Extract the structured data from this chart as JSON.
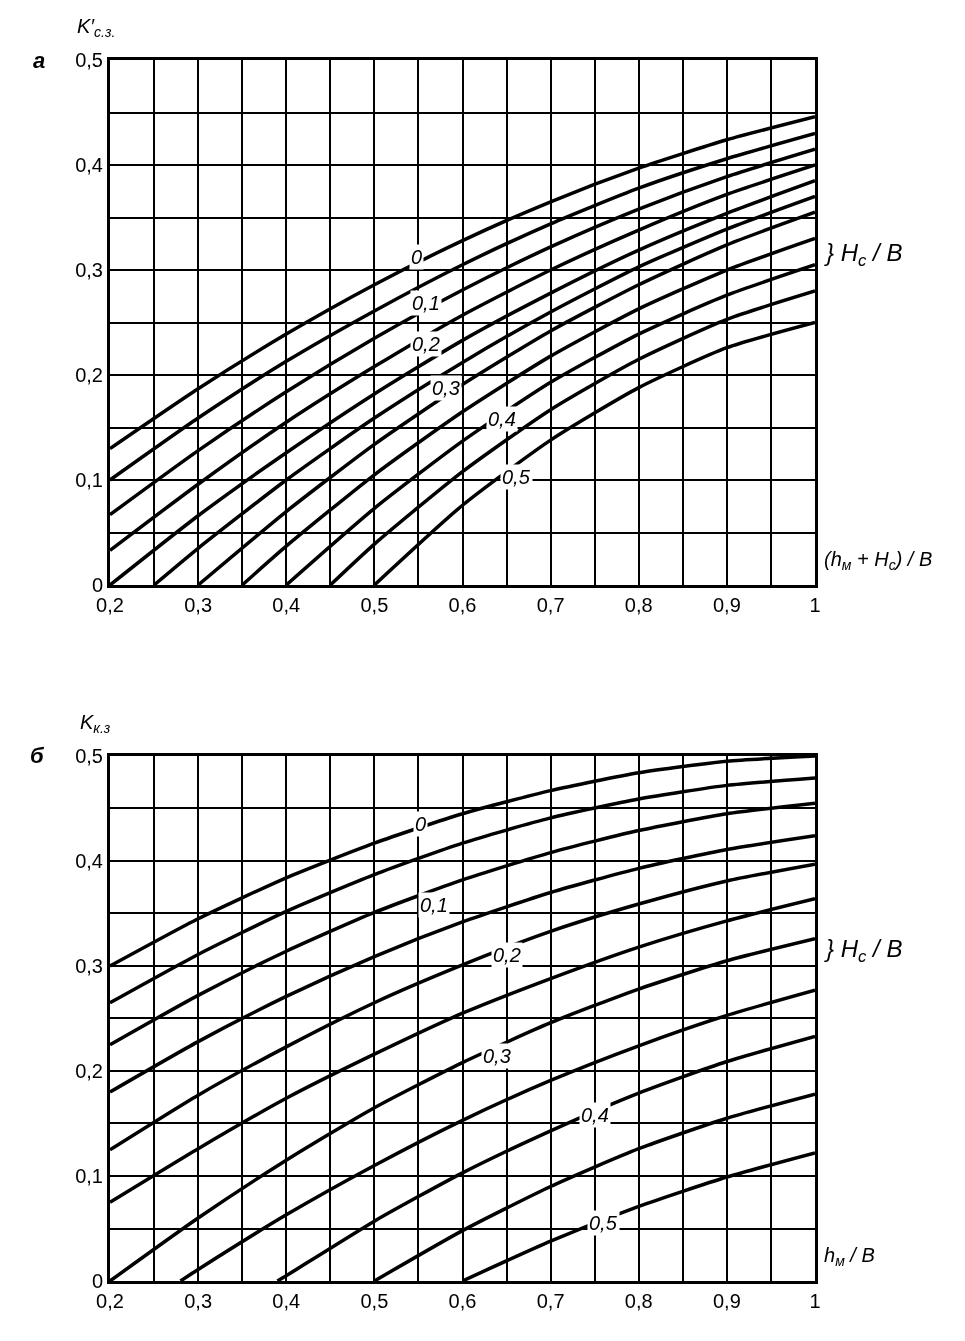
{
  "chart_data": [
    {
      "type": "line",
      "title": "а",
      "ylabel": "K′$_{с.з.}$",
      "xlabel": "(h$_{м}$ + H$_{с}$) / B",
      "color": "#000000",
      "grid": true,
      "marker": "none",
      "line_style": "solid",
      "xlim": [
        0.2,
        1
      ],
      "ylim": [
        0,
        0.5
      ],
      "xticks": [
        {
          "value": 0.2,
          "label": "0,2"
        },
        {
          "value": 0.25,
          "label": null
        },
        {
          "value": 0.3,
          "label": "0,3"
        },
        {
          "value": 0.35,
          "label": null
        },
        {
          "value": 0.4,
          "label": "0,4"
        },
        {
          "value": 0.45,
          "label": null
        },
        {
          "value": 0.5,
          "label": "0,5"
        },
        {
          "value": 0.55,
          "label": null
        },
        {
          "value": 0.6,
          "label": "0,6"
        },
        {
          "value": 0.65,
          "label": null
        },
        {
          "value": 0.7,
          "label": "0,7"
        },
        {
          "value": 0.75,
          "label": null
        },
        {
          "value": 0.8,
          "label": "0,8"
        },
        {
          "value": 0.85,
          "label": null
        },
        {
          "value": 0.9,
          "label": "0,9"
        },
        {
          "value": 0.95,
          "label": null
        },
        {
          "value": 1,
          "label": "1"
        }
      ],
      "yticks": [
        {
          "value": 0,
          "label": "0"
        },
        {
          "value": 0.05,
          "label": null
        },
        {
          "value": 0.1,
          "label": "0,1"
        },
        {
          "value": 0.15,
          "label": null
        },
        {
          "value": 0.2,
          "label": "0,2"
        },
        {
          "value": 0.25,
          "label": null
        },
        {
          "value": 0.3,
          "label": "0,3"
        },
        {
          "value": 0.35,
          "label": null
        },
        {
          "value": 0.4,
          "label": "0,4"
        },
        {
          "value": 0.45,
          "label": null
        },
        {
          "value": 0.5,
          "label": "0,5"
        }
      ],
      "series": [
        {
          "x": [
            0.2,
            0.3,
            0.4,
            0.5,
            0.6,
            0.7,
            0.8,
            0.9,
            1
          ],
          "values": [
            0.13,
            0.187,
            0.239,
            0.286,
            0.328,
            0.365,
            0.397,
            0.424,
            0.446
          ]
        },
        {
          "x": [
            0.2,
            0.3,
            0.4,
            0.5,
            0.6,
            0.7,
            0.8,
            0.9,
            1
          ],
          "values": [
            0.1,
            0.159,
            0.213,
            0.261,
            0.305,
            0.344,
            0.378,
            0.406,
            0.43
          ]
        },
        {
          "x": [
            0.2,
            0.3,
            0.4,
            0.5,
            0.6,
            0.7,
            0.8,
            0.9,
            1
          ],
          "values": [
            0.067,
            0.128,
            0.184,
            0.235,
            0.281,
            0.322,
            0.358,
            0.389,
            0.415
          ]
        },
        {
          "x": [
            0.2,
            0.3,
            0.4,
            0.5,
            0.6,
            0.7,
            0.8,
            0.9,
            1
          ],
          "values": [
            0.033,
            0.096,
            0.155,
            0.208,
            0.257,
            0.3,
            0.338,
            0.372,
            0.4
          ]
        },
        {
          "x": [
            0.2,
            0.3,
            0.4,
            0.5,
            0.6,
            0.7,
            0.8,
            0.9,
            1
          ],
          "values": [
            0,
            0.066,
            0.126,
            0.182,
            0.233,
            0.278,
            0.319,
            0.354,
            0.385
          ]
        },
        {
          "x": [
            0.25,
            0.3,
            0.4,
            0.5,
            0.6,
            0.7,
            0.8,
            0.9,
            1
          ],
          "values": [
            0,
            0.035,
            0.1,
            0.159,
            0.212,
            0.26,
            0.303,
            0.339,
            0.37
          ]
        },
        {
          "x": [
            0.3,
            0.4,
            0.5,
            0.6,
            0.7,
            0.8,
            0.9,
            1
          ],
          "values": [
            0,
            0.07,
            0.134,
            0.191,
            0.242,
            0.286,
            0.324,
            0.355
          ]
        },
        {
          "x": [
            0.35,
            0.4,
            0.5,
            0.6,
            0.7,
            0.8,
            0.9,
            1
          ],
          "values": [
            0,
            0.037,
            0.105,
            0.165,
            0.218,
            0.263,
            0.3,
            0.33
          ]
        },
        {
          "x": [
            0.4,
            0.5,
            0.6,
            0.7,
            0.8,
            0.9,
            1
          ],
          "values": [
            0,
            0.073,
            0.137,
            0.193,
            0.239,
            0.276,
            0.305
          ]
        },
        {
          "x": [
            0.45,
            0.5,
            0.6,
            0.7,
            0.8,
            0.9,
            1
          ],
          "values": [
            0,
            0.039,
            0.108,
            0.167,
            0.215,
            0.253,
            0.28
          ]
        },
        {
          "x": [
            0.5,
            0.6,
            0.7,
            0.8,
            0.9,
            1
          ],
          "values": [
            0,
            0.076,
            0.138,
            0.188,
            0.226,
            0.25
          ]
        }
      ],
      "annotations": [
        {
          "text": "0",
          "x": 0.548,
          "y": 0.312
        },
        {
          "text": "0,1",
          "x": 0.559,
          "y": 0.269
        },
        {
          "text": "0,2",
          "x": 0.559,
          "y": 0.23
        },
        {
          "text": "0,3",
          "x": 0.581,
          "y": 0.188
        },
        {
          "text": "0,4",
          "x": 0.645,
          "y": 0.158
        },
        {
          "text": "0,5",
          "x": 0.661,
          "y": 0.103
        },
        "} H$_{с}$ / B"
      ]
    },
    {
      "type": "line",
      "title": "б",
      "ylabel": "K$_{к.з}$",
      "xlabel": "h$_{м}$ / B",
      "color": "#000000",
      "grid": true,
      "marker": "none",
      "line_style": "solid",
      "xlim": [
        0.2,
        1
      ],
      "ylim": [
        0,
        0.5
      ],
      "xticks": [
        {
          "value": 0.2,
          "label": "0,2"
        },
        {
          "value": 0.25,
          "label": null
        },
        {
          "value": 0.3,
          "label": "0,3"
        },
        {
          "value": 0.35,
          "label": null
        },
        {
          "value": 0.4,
          "label": "0,4"
        },
        {
          "value": 0.45,
          "label": null
        },
        {
          "value": 0.5,
          "label": "0,5"
        },
        {
          "value": 0.55,
          "label": null
        },
        {
          "value": 0.6,
          "label": "0,6"
        },
        {
          "value": 0.65,
          "label": null
        },
        {
          "value": 0.7,
          "label": "0,7"
        },
        {
          "value": 0.75,
          "label": null
        },
        {
          "value": 0.8,
          "label": "0,8"
        },
        {
          "value": 0.85,
          "label": null
        },
        {
          "value": 0.9,
          "label": "0,9"
        },
        {
          "value": 0.95,
          "label": null
        },
        {
          "value": 1,
          "label": "1"
        }
      ],
      "yticks": [
        {
          "value": 0,
          "label": "0"
        },
        {
          "value": 0.05,
          "label": null
        },
        {
          "value": 0.1,
          "label": "0,1"
        },
        {
          "value": 0.15,
          "label": null
        },
        {
          "value": 0.2,
          "label": "0,2"
        },
        {
          "value": 0.25,
          "label": null
        },
        {
          "value": 0.3,
          "label": "0,3"
        },
        {
          "value": 0.35,
          "label": null
        },
        {
          "value": 0.4,
          "label": "0,4"
        },
        {
          "value": 0.45,
          "label": null
        },
        {
          "value": 0.5,
          "label": "0,5"
        }
      ],
      "series": [
        {
          "x": [
            0.2,
            0.3,
            0.4,
            0.5,
            0.6,
            0.7,
            0.8,
            0.9,
            1
          ],
          "values": [
            0.3,
            0.345,
            0.384,
            0.417,
            0.445,
            0.467,
            0.484,
            0.495,
            0.5
          ]
        },
        {
          "x": [
            0.2,
            0.3,
            0.4,
            0.5,
            0.6,
            0.7,
            0.8,
            0.9,
            1
          ],
          "values": [
            0.265,
            0.311,
            0.352,
            0.387,
            0.417,
            0.441,
            0.459,
            0.472,
            0.479
          ]
        },
        {
          "x": [
            0.2,
            0.3,
            0.4,
            0.5,
            0.6,
            0.7,
            0.8,
            0.9,
            1
          ],
          "values": [
            0.225,
            0.272,
            0.314,
            0.351,
            0.382,
            0.408,
            0.429,
            0.445,
            0.455
          ]
        },
        {
          "x": [
            0.2,
            0.3,
            0.4,
            0.5,
            0.6,
            0.7,
            0.8,
            0.9,
            1
          ],
          "values": [
            0.18,
            0.228,
            0.271,
            0.309,
            0.342,
            0.37,
            0.393,
            0.411,
            0.424
          ]
        },
        {
          "x": [
            0.2,
            0.3,
            0.4,
            0.5,
            0.6,
            0.7,
            0.8,
            0.9,
            1
          ],
          "values": [
            0.125,
            0.177,
            0.223,
            0.265,
            0.301,
            0.333,
            0.359,
            0.381,
            0.397
          ]
        },
        {
          "x": [
            0.2,
            0.3,
            0.4,
            0.5,
            0.6,
            0.7,
            0.8,
            0.9,
            1
          ],
          "values": [
            0.075,
            0.126,
            0.174,
            0.216,
            0.255,
            0.288,
            0.318,
            0.343,
            0.364
          ]
        },
        {
          "x": [
            0.2,
            0.3,
            0.4,
            0.5,
            0.6,
            0.7,
            0.8,
            0.9,
            1
          ],
          "values": [
            0,
            0.06,
            0.115,
            0.165,
            0.208,
            0.246,
            0.278,
            0.305,
            0.326
          ]
        },
        {
          "x": [
            0.28,
            0.3,
            0.4,
            0.5,
            0.6,
            0.7,
            0.8,
            0.9,
            1
          ],
          "values": [
            0,
            0.011,
            0.063,
            0.11,
            0.153,
            0.191,
            0.224,
            0.253,
            0.277
          ]
        },
        {
          "x": [
            0.39,
            0.4,
            0.5,
            0.6,
            0.7,
            0.8,
            0.9,
            1
          ],
          "values": [
            0,
            0.005,
            0.057,
            0.103,
            0.143,
            0.179,
            0.209,
            0.233
          ]
        },
        {
          "x": [
            0.5,
            0.6,
            0.7,
            0.8,
            0.9,
            1
          ],
          "values": [
            0,
            0.048,
            0.09,
            0.126,
            0.155,
            0.178
          ]
        },
        {
          "x": [
            0.6,
            0.7,
            0.8,
            0.9,
            1
          ],
          "values": [
            0,
            0.038,
            0.071,
            0.099,
            0.122
          ]
        }
      ],
      "annotations": [
        {
          "text": "0",
          "x": 0.552,
          "y": 0.435
        },
        {
          "text": "0,1",
          "x": 0.568,
          "y": 0.358
        },
        {
          "text": "0,2",
          "x": 0.65,
          "y": 0.31
        },
        {
          "text": "0,3",
          "x": 0.639,
          "y": 0.214
        },
        {
          "text": "0,4",
          "x": 0.75,
          "y": 0.158
        },
        {
          "text": "0,5",
          "x": 0.76,
          "y": 0.055
        },
        "} H$_{с}$ / B"
      ]
    }
  ]
}
